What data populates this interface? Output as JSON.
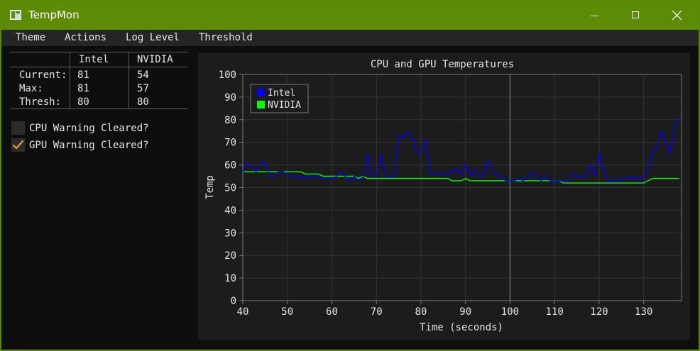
{
  "window": {
    "title": "TempMon",
    "icon": "app-window-icon"
  },
  "menu": {
    "items": [
      "Theme",
      "Actions",
      "Log Level",
      "Threshold"
    ]
  },
  "stats": {
    "headers": [
      "",
      "Intel",
      "NVIDIA"
    ],
    "rows": [
      {
        "label": "Current:",
        "intel": "81",
        "nvidia": "54"
      },
      {
        "label": "Max:",
        "intel": "81",
        "nvidia": "57"
      },
      {
        "label": "Thresh:",
        "intel": "80",
        "nvidia": "80"
      }
    ]
  },
  "warnings": {
    "cpu": {
      "label": "CPU Warning Cleared?",
      "checked": false
    },
    "gpu": {
      "label": "GPU Warning Cleared?",
      "checked": true
    }
  },
  "colors": {
    "titlebar": "#5c8b05",
    "intel": "#0000ff",
    "nvidia": "#00ff00",
    "checkmark": "#e0a040"
  },
  "chart_data": {
    "type": "line",
    "title": "CPU and GPU Temperatures",
    "xlabel": "Time (seconds)",
    "ylabel": "Temp",
    "xlim": [
      40,
      138.5
    ],
    "ylim": [
      0,
      100
    ],
    "xticks": [
      40,
      50,
      60,
      70,
      80,
      90,
      100,
      110,
      120,
      130
    ],
    "yticks": [
      0,
      10,
      20,
      30,
      40,
      50,
      60,
      70,
      80,
      90,
      100
    ],
    "grid": true,
    "legend_position": "top-left",
    "marker_line_x": 100,
    "series": [
      {
        "name": "Intel",
        "color": "#0000ff",
        "points": [
          [
            40,
            57
          ],
          [
            41,
            61
          ],
          [
            42,
            59
          ],
          [
            43,
            57
          ],
          [
            44,
            61
          ],
          [
            45,
            61
          ],
          [
            46,
            55
          ],
          [
            47,
            55
          ],
          [
            48,
            57
          ],
          [
            49,
            57
          ],
          [
            50,
            56
          ],
          [
            51,
            55
          ],
          [
            52,
            55
          ],
          [
            53,
            54
          ],
          [
            54,
            55
          ],
          [
            55,
            54
          ],
          [
            56,
            55
          ],
          [
            57,
            55
          ],
          [
            58,
            54
          ],
          [
            59,
            54
          ],
          [
            60,
            54
          ],
          [
            61,
            55
          ],
          [
            62,
            57
          ],
          [
            63,
            55
          ],
          [
            64,
            53
          ],
          [
            65,
            55
          ],
          [
            66,
            53
          ],
          [
            67,
            54
          ],
          [
            68,
            65
          ],
          [
            69,
            55
          ],
          [
            70,
            55
          ],
          [
            71,
            65
          ],
          [
            72,
            55
          ],
          [
            73,
            55
          ],
          [
            74,
            55
          ],
          [
            75,
            73
          ],
          [
            76,
            72
          ],
          [
            77,
            75
          ],
          [
            78,
            72
          ],
          [
            79,
            65
          ],
          [
            80,
            66
          ],
          [
            81,
            71
          ],
          [
            82,
            56
          ],
          [
            83,
            56
          ],
          [
            84,
            56
          ],
          [
            85,
            56
          ],
          [
            86,
            55
          ],
          [
            87,
            58
          ],
          [
            88,
            58
          ],
          [
            89,
            56
          ],
          [
            90,
            60
          ],
          [
            91,
            55
          ],
          [
            92,
            58
          ],
          [
            93,
            55
          ],
          [
            94,
            55
          ],
          [
            95,
            62
          ],
          [
            96,
            58
          ],
          [
            97,
            55
          ],
          [
            98,
            55
          ],
          [
            99,
            53
          ],
          [
            100,
            53
          ],
          [
            101,
            53
          ],
          [
            102,
            54
          ],
          [
            103,
            53
          ],
          [
            104,
            55
          ],
          [
            105,
            57
          ],
          [
            106,
            55
          ],
          [
            107,
            53
          ],
          [
            108,
            55
          ],
          [
            109,
            53
          ],
          [
            110,
            53
          ],
          [
            111,
            53
          ],
          [
            112,
            53
          ],
          [
            113,
            53
          ],
          [
            114,
            56
          ],
          [
            115,
            55
          ],
          [
            116,
            55
          ],
          [
            117,
            55
          ],
          [
            118,
            60
          ],
          [
            119,
            55
          ],
          [
            120,
            65
          ],
          [
            121,
            58
          ],
          [
            122,
            53
          ],
          [
            123,
            53
          ],
          [
            124,
            53
          ],
          [
            125,
            54
          ],
          [
            126,
            54
          ],
          [
            127,
            54
          ],
          [
            128,
            55
          ],
          [
            129,
            53
          ],
          [
            130,
            55
          ],
          [
            131,
            58
          ],
          [
            132,
            67
          ],
          [
            133,
            67
          ],
          [
            134,
            75
          ],
          [
            135,
            70
          ],
          [
            136,
            65
          ],
          [
            137,
            78
          ],
          [
            138,
            81
          ]
        ]
      },
      {
        "name": "NVIDIA",
        "color": "#00ff00",
        "points": [
          [
            40,
            57
          ],
          [
            53,
            57
          ],
          [
            54,
            56
          ],
          [
            57,
            56
          ],
          [
            58,
            55
          ],
          [
            65,
            55
          ],
          [
            66,
            54
          ],
          [
            67,
            55
          ],
          [
            68,
            54
          ],
          [
            86,
            54
          ],
          [
            87,
            53
          ],
          [
            89,
            53
          ],
          [
            90,
            54
          ],
          [
            91,
            53
          ],
          [
            111,
            53
          ],
          [
            112,
            52
          ],
          [
            130,
            52
          ],
          [
            131,
            53
          ],
          [
            132,
            54
          ],
          [
            138,
            54
          ]
        ]
      }
    ]
  }
}
